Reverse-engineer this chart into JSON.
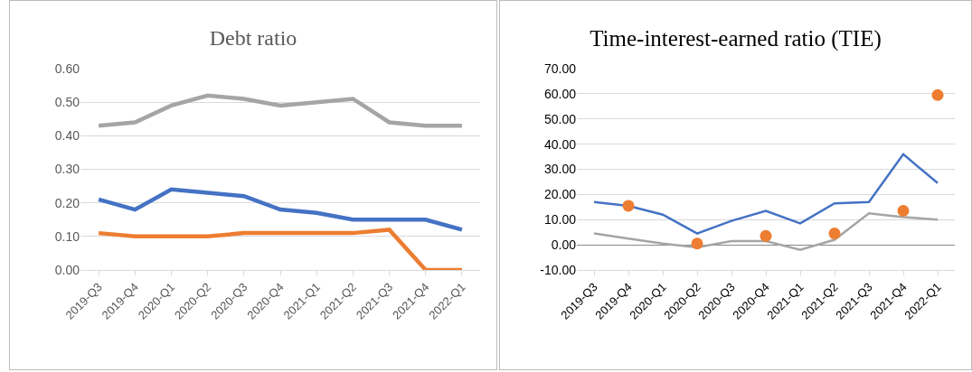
{
  "chart_data": [
    {
      "type": "line",
      "title": "Debt ratio",
      "categories": [
        "2019-Q3",
        "2019-Q4",
        "2020-Q1",
        "2020-Q2",
        "2020-Q3",
        "2020-Q4",
        "2021-Q1",
        "2021-Q2",
        "2021-Q3",
        "2021-Q4",
        "2022-Q1"
      ],
      "series": [
        {
          "color": "#4472c4",
          "values": [
            0.21,
            0.18,
            0.24,
            0.23,
            0.22,
            0.18,
            0.17,
            0.15,
            0.15,
            0.15,
            0.12
          ]
        },
        {
          "color": "#ed7d31",
          "values": [
            0.11,
            0.1,
            0.1,
            0.1,
            0.11,
            0.11,
            0.11,
            0.11,
            0.12,
            0.0,
            0.0
          ]
        },
        {
          "color": "#a5a5a5",
          "values": [
            0.43,
            0.44,
            0.49,
            0.52,
            0.51,
            0.49,
            0.5,
            0.51,
            0.44,
            0.43,
            0.43
          ]
        }
      ],
      "ylim": [
        0,
        0.6
      ],
      "yticks": [
        {
          "value": 0,
          "label": "0.00"
        },
        {
          "value": 0.1,
          "label": "0.10"
        },
        {
          "value": 0.2,
          "label": "0.20"
        },
        {
          "value": 0.3,
          "label": "0.30"
        },
        {
          "value": 0.4,
          "label": "0.40"
        },
        {
          "value": 0.5,
          "label": "0.50"
        },
        {
          "value": 0.6,
          "label": "0.60"
        }
      ],
      "grid": "y",
      "line_style": "solid"
    },
    {
      "type": "line",
      "title": "Time-interest-earned ratio (TIE)",
      "categories": [
        "2019-Q3",
        "2019-Q4",
        "2020-Q1",
        "2020-Q2",
        "2020-Q3",
        "2020-Q4",
        "2021-Q1",
        "2021-Q2",
        "2021-Q3",
        "2021-Q4",
        "2022-Q1"
      ],
      "series": [
        {
          "color": "#4472c4",
          "values": [
            17,
            15.5,
            12,
            4.5,
            9.5,
            13.5,
            8.5,
            16.5,
            17,
            36,
            24.5
          ]
        },
        {
          "color": "#a5a5a5",
          "values": [
            4.5,
            2.5,
            0.5,
            -1,
            1.5,
            1.5,
            -2,
            2,
            12.5,
            11,
            10
          ]
        },
        {
          "type": "scatter",
          "color": "#ed7d31",
          "values": [
            null,
            15.5,
            null,
            0.5,
            null,
            3.5,
            null,
            4.5,
            null,
            13.5,
            59.5
          ]
        }
      ],
      "ylim": [
        -10,
        70
      ],
      "yticks": [
        {
          "value": -10,
          "label": "-10.00"
        },
        {
          "value": 0,
          "label": "0.00"
        },
        {
          "value": 10,
          "label": "10.00"
        },
        {
          "value": 20,
          "label": "20.00"
        },
        {
          "value": 30,
          "label": "30.00"
        },
        {
          "value": 40,
          "label": "40.00"
        },
        {
          "value": 50,
          "label": "50.00"
        },
        {
          "value": 60,
          "label": "60.00"
        },
        {
          "value": 70,
          "label": "70.00"
        }
      ],
      "grid": "y",
      "line_style": "solid"
    }
  ]
}
